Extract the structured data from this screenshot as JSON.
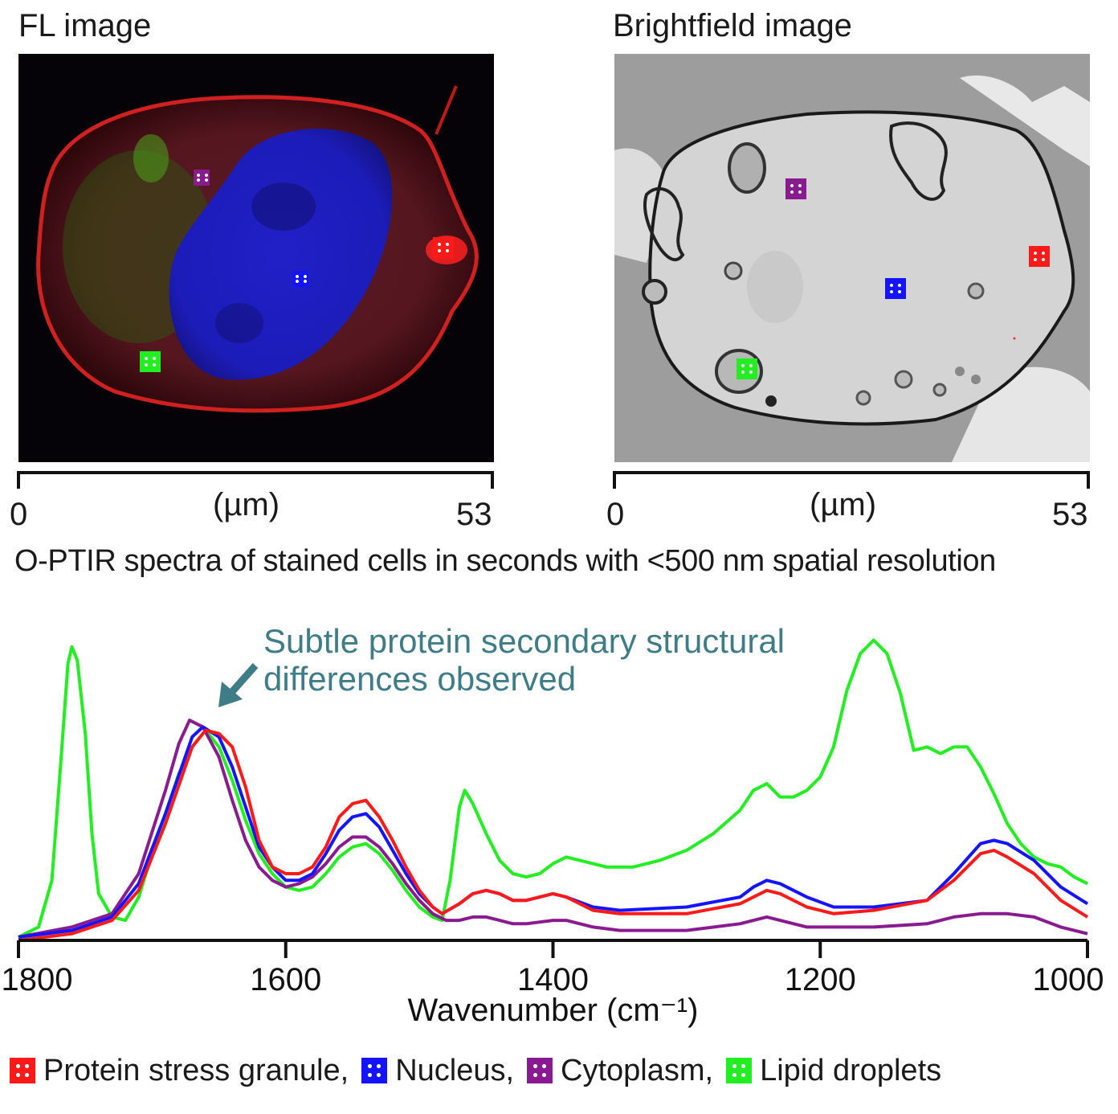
{
  "panels": {
    "fl": {
      "title": "FL image",
      "axis": {
        "min_label": "0",
        "unit_label": "(µm)",
        "max_label": "53"
      }
    },
    "bf": {
      "title": "Brightfield image",
      "axis": {
        "min_label": "0",
        "unit_label": "(µm)",
        "max_label": "53"
      }
    }
  },
  "subtitle": "O-PTIR spectra of stained cells in seconds with <500 nm spatial resolution",
  "annotation": {
    "line1": "Subtle protein secondary structural",
    "line2": "differences observed"
  },
  "colors": {
    "protein": "#ff1a1a",
    "nucleus": "#1414ff",
    "cytoplasm": "#8a1a8f",
    "lipid": "#22ee22",
    "annotation": "#3e7d87"
  },
  "legend": [
    {
      "label": "Protein stress granule,",
      "color": "#ff1a1a"
    },
    {
      "label": "Nucleus,",
      "color": "#1414ff"
    },
    {
      "label": "Cytoplasm,",
      "color": "#8a1a8f"
    },
    {
      "label": "Lipid droplets",
      "color": "#22ee22"
    }
  ],
  "chart_data": {
    "type": "line",
    "title": "",
    "xlabel": "Wavenumber (cm⁻¹)",
    "ylabel": "",
    "xlim": [
      1800,
      1000
    ],
    "x_reversed": true,
    "ylim": [
      0,
      1
    ],
    "xticks": [
      1800,
      1600,
      1400,
      1200,
      1000
    ],
    "grid": false,
    "legend_position": "bottom",
    "series": [
      {
        "name": "Protein stress granule",
        "color": "#ff1a1a",
        "points": [
          [
            1800,
            0.0
          ],
          [
            1760,
            0.02
          ],
          [
            1730,
            0.06
          ],
          [
            1710,
            0.15
          ],
          [
            1690,
            0.35
          ],
          [
            1670,
            0.58
          ],
          [
            1660,
            0.63
          ],
          [
            1650,
            0.62
          ],
          [
            1640,
            0.58
          ],
          [
            1630,
            0.46
          ],
          [
            1620,
            0.3
          ],
          [
            1610,
            0.22
          ],
          [
            1600,
            0.2
          ],
          [
            1590,
            0.2
          ],
          [
            1580,
            0.22
          ],
          [
            1570,
            0.28
          ],
          [
            1560,
            0.37
          ],
          [
            1550,
            0.41
          ],
          [
            1540,
            0.42
          ],
          [
            1530,
            0.37
          ],
          [
            1520,
            0.3
          ],
          [
            1510,
            0.22
          ],
          [
            1500,
            0.15
          ],
          [
            1490,
            0.1
          ],
          [
            1483,
            0.08
          ],
          [
            1470,
            0.11
          ],
          [
            1460,
            0.14
          ],
          [
            1450,
            0.15
          ],
          [
            1440,
            0.14
          ],
          [
            1430,
            0.12
          ],
          [
            1420,
            0.12
          ],
          [
            1400,
            0.14
          ],
          [
            1390,
            0.13
          ],
          [
            1370,
            0.09
          ],
          [
            1350,
            0.08
          ],
          [
            1300,
            0.08
          ],
          [
            1260,
            0.11
          ],
          [
            1250,
            0.13
          ],
          [
            1240,
            0.15
          ],
          [
            1230,
            0.14
          ],
          [
            1210,
            0.1
          ],
          [
            1190,
            0.08
          ],
          [
            1160,
            0.09
          ],
          [
            1120,
            0.12
          ],
          [
            1100,
            0.18
          ],
          [
            1080,
            0.26
          ],
          [
            1070,
            0.27
          ],
          [
            1060,
            0.25
          ],
          [
            1040,
            0.2
          ],
          [
            1020,
            0.12
          ],
          [
            1000,
            0.07
          ]
        ]
      },
      {
        "name": "Nucleus",
        "color": "#1414ff",
        "points": [
          [
            1800,
            0.01
          ],
          [
            1760,
            0.03
          ],
          [
            1730,
            0.07
          ],
          [
            1710,
            0.17
          ],
          [
            1690,
            0.38
          ],
          [
            1670,
            0.61
          ],
          [
            1662,
            0.64
          ],
          [
            1650,
            0.61
          ],
          [
            1640,
            0.52
          ],
          [
            1630,
            0.4
          ],
          [
            1620,
            0.28
          ],
          [
            1610,
            0.22
          ],
          [
            1600,
            0.18
          ],
          [
            1590,
            0.18
          ],
          [
            1580,
            0.2
          ],
          [
            1570,
            0.26
          ],
          [
            1560,
            0.33
          ],
          [
            1550,
            0.37
          ],
          [
            1540,
            0.38
          ],
          [
            1530,
            0.34
          ],
          [
            1520,
            0.27
          ],
          [
            1510,
            0.2
          ],
          [
            1500,
            0.14
          ],
          [
            1490,
            0.1
          ],
          [
            1483,
            0.08
          ],
          [
            1470,
            0.11
          ],
          [
            1460,
            0.14
          ],
          [
            1450,
            0.15
          ],
          [
            1440,
            0.14
          ],
          [
            1430,
            0.12
          ],
          [
            1420,
            0.12
          ],
          [
            1400,
            0.14
          ],
          [
            1390,
            0.13
          ],
          [
            1370,
            0.1
          ],
          [
            1350,
            0.09
          ],
          [
            1300,
            0.1
          ],
          [
            1260,
            0.13
          ],
          [
            1250,
            0.16
          ],
          [
            1240,
            0.18
          ],
          [
            1230,
            0.17
          ],
          [
            1210,
            0.13
          ],
          [
            1190,
            0.1
          ],
          [
            1160,
            0.1
          ],
          [
            1120,
            0.12
          ],
          [
            1100,
            0.2
          ],
          [
            1080,
            0.29
          ],
          [
            1070,
            0.3
          ],
          [
            1060,
            0.29
          ],
          [
            1040,
            0.24
          ],
          [
            1020,
            0.16
          ],
          [
            1000,
            0.11
          ]
        ]
      },
      {
        "name": "Cytoplasm",
        "color": "#8a1a8f",
        "points": [
          [
            1800,
            0.01
          ],
          [
            1760,
            0.04
          ],
          [
            1730,
            0.08
          ],
          [
            1710,
            0.2
          ],
          [
            1690,
            0.45
          ],
          [
            1680,
            0.59
          ],
          [
            1672,
            0.66
          ],
          [
            1662,
            0.64
          ],
          [
            1650,
            0.55
          ],
          [
            1640,
            0.42
          ],
          [
            1630,
            0.3
          ],
          [
            1620,
            0.22
          ],
          [
            1610,
            0.18
          ],
          [
            1600,
            0.16
          ],
          [
            1590,
            0.17
          ],
          [
            1580,
            0.19
          ],
          [
            1570,
            0.23
          ],
          [
            1560,
            0.28
          ],
          [
            1550,
            0.31
          ],
          [
            1540,
            0.31
          ],
          [
            1530,
            0.28
          ],
          [
            1520,
            0.23
          ],
          [
            1510,
            0.17
          ],
          [
            1500,
            0.12
          ],
          [
            1490,
            0.08
          ],
          [
            1480,
            0.06
          ],
          [
            1470,
            0.06
          ],
          [
            1460,
            0.07
          ],
          [
            1450,
            0.07
          ],
          [
            1440,
            0.06
          ],
          [
            1430,
            0.05
          ],
          [
            1420,
            0.05
          ],
          [
            1400,
            0.06
          ],
          [
            1390,
            0.06
          ],
          [
            1370,
            0.04
          ],
          [
            1350,
            0.03
          ],
          [
            1300,
            0.03
          ],
          [
            1260,
            0.05
          ],
          [
            1250,
            0.06
          ],
          [
            1240,
            0.07
          ],
          [
            1230,
            0.06
          ],
          [
            1210,
            0.04
          ],
          [
            1190,
            0.04
          ],
          [
            1160,
            0.04
          ],
          [
            1120,
            0.05
          ],
          [
            1100,
            0.07
          ],
          [
            1080,
            0.08
          ],
          [
            1060,
            0.08
          ],
          [
            1040,
            0.07
          ],
          [
            1020,
            0.04
          ],
          [
            1000,
            0.02
          ]
        ]
      },
      {
        "name": "Lipid droplets",
        "color": "#22ee22",
        "points": [
          [
            1800,
            0.01
          ],
          [
            1785,
            0.04
          ],
          [
            1775,
            0.18
          ],
          [
            1768,
            0.55
          ],
          [
            1763,
            0.83
          ],
          [
            1760,
            0.88
          ],
          [
            1756,
            0.84
          ],
          [
            1750,
            0.62
          ],
          [
            1745,
            0.32
          ],
          [
            1740,
            0.14
          ],
          [
            1730,
            0.07
          ],
          [
            1720,
            0.06
          ],
          [
            1710,
            0.13
          ],
          [
            1700,
            0.26
          ],
          [
            1690,
            0.38
          ],
          [
            1680,
            0.5
          ],
          [
            1670,
            0.58
          ],
          [
            1660,
            0.63
          ],
          [
            1650,
            0.58
          ],
          [
            1640,
            0.48
          ],
          [
            1630,
            0.36
          ],
          [
            1620,
            0.26
          ],
          [
            1610,
            0.2
          ],
          [
            1600,
            0.16
          ],
          [
            1590,
            0.15
          ],
          [
            1580,
            0.16
          ],
          [
            1570,
            0.2
          ],
          [
            1560,
            0.25
          ],
          [
            1550,
            0.28
          ],
          [
            1540,
            0.29
          ],
          [
            1530,
            0.26
          ],
          [
            1520,
            0.21
          ],
          [
            1510,
            0.15
          ],
          [
            1500,
            0.1
          ],
          [
            1490,
            0.07
          ],
          [
            1483,
            0.06
          ],
          [
            1477,
            0.18
          ],
          [
            1470,
            0.4
          ],
          [
            1466,
            0.45
          ],
          [
            1460,
            0.41
          ],
          [
            1450,
            0.32
          ],
          [
            1440,
            0.24
          ],
          [
            1430,
            0.2
          ],
          [
            1420,
            0.19
          ],
          [
            1410,
            0.2
          ],
          [
            1400,
            0.23
          ],
          [
            1390,
            0.25
          ],
          [
            1380,
            0.24
          ],
          [
            1360,
            0.22
          ],
          [
            1340,
            0.22
          ],
          [
            1320,
            0.24
          ],
          [
            1300,
            0.27
          ],
          [
            1280,
            0.32
          ],
          [
            1260,
            0.39
          ],
          [
            1250,
            0.45
          ],
          [
            1240,
            0.47
          ],
          [
            1230,
            0.43
          ],
          [
            1220,
            0.43
          ],
          [
            1210,
            0.45
          ],
          [
            1200,
            0.49
          ],
          [
            1190,
            0.58
          ],
          [
            1180,
            0.75
          ],
          [
            1170,
            0.86
          ],
          [
            1160,
            0.9
          ],
          [
            1150,
            0.86
          ],
          [
            1140,
            0.74
          ],
          [
            1130,
            0.57
          ],
          [
            1120,
            0.58
          ],
          [
            1110,
            0.56
          ],
          [
            1100,
            0.58
          ],
          [
            1090,
            0.58
          ],
          [
            1080,
            0.52
          ],
          [
            1070,
            0.44
          ],
          [
            1060,
            0.35
          ],
          [
            1050,
            0.29
          ],
          [
            1040,
            0.25
          ],
          [
            1030,
            0.23
          ],
          [
            1020,
            0.22
          ],
          [
            1010,
            0.19
          ],
          [
            1000,
            0.17
          ]
        ]
      }
    ]
  }
}
